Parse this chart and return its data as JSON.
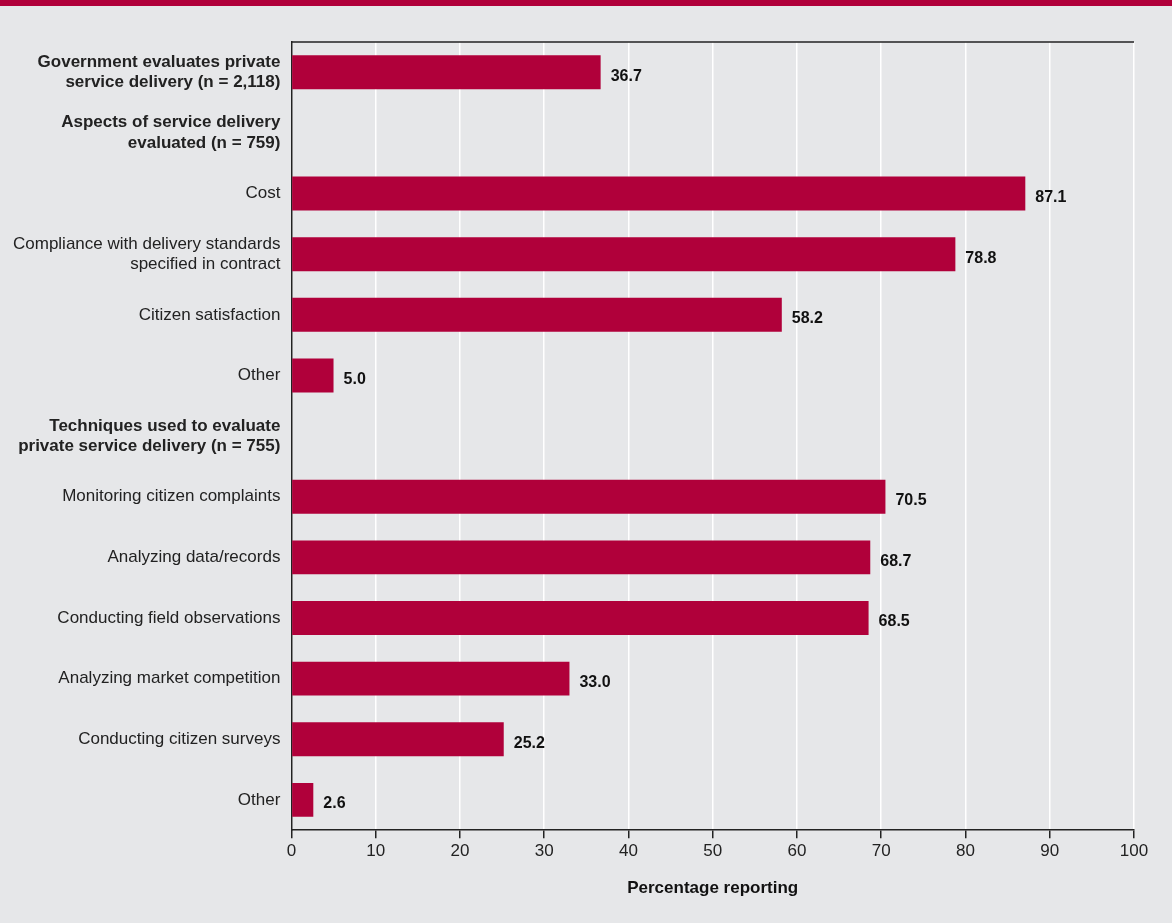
{
  "chart_data": {
    "type": "bar",
    "orientation": "horizontal",
    "xlabel": "Percentage reporting",
    "categories": [
      "Government evaluates private service delivery (n = 2,118)",
      "Aspects of service delivery evaluated (n = 759)",
      "Cost",
      "Compliance with delivery standards specified in contract",
      "Citizen satisfaction",
      "Other",
      "Techniques used to evaluate private service delivery (n = 755)",
      "Monitoring citizen complaints",
      "Analyzing data/records",
      "Conducting field observations",
      "Analyzing market competition",
      "Conducting citizen surveys",
      "Other"
    ],
    "values": [
      36.7,
      null,
      87.1,
      78.8,
      58.2,
      5.0,
      null,
      70.5,
      68.7,
      68.5,
      33.0,
      25.2,
      2.6
    ],
    "value_labels": [
      "36.7",
      null,
      "87.1",
      "78.8",
      "58.2",
      "5.0",
      null,
      "70.5",
      "68.7",
      "68.5",
      "33.0",
      "25.2",
      "2.6"
    ],
    "color": "#b0003a",
    "xlim": [
      0,
      100
    ],
    "xticks": [
      0,
      10,
      20,
      30,
      40,
      50,
      60,
      70,
      80,
      90,
      100
    ],
    "grid": "x",
    "legend": false
  }
}
